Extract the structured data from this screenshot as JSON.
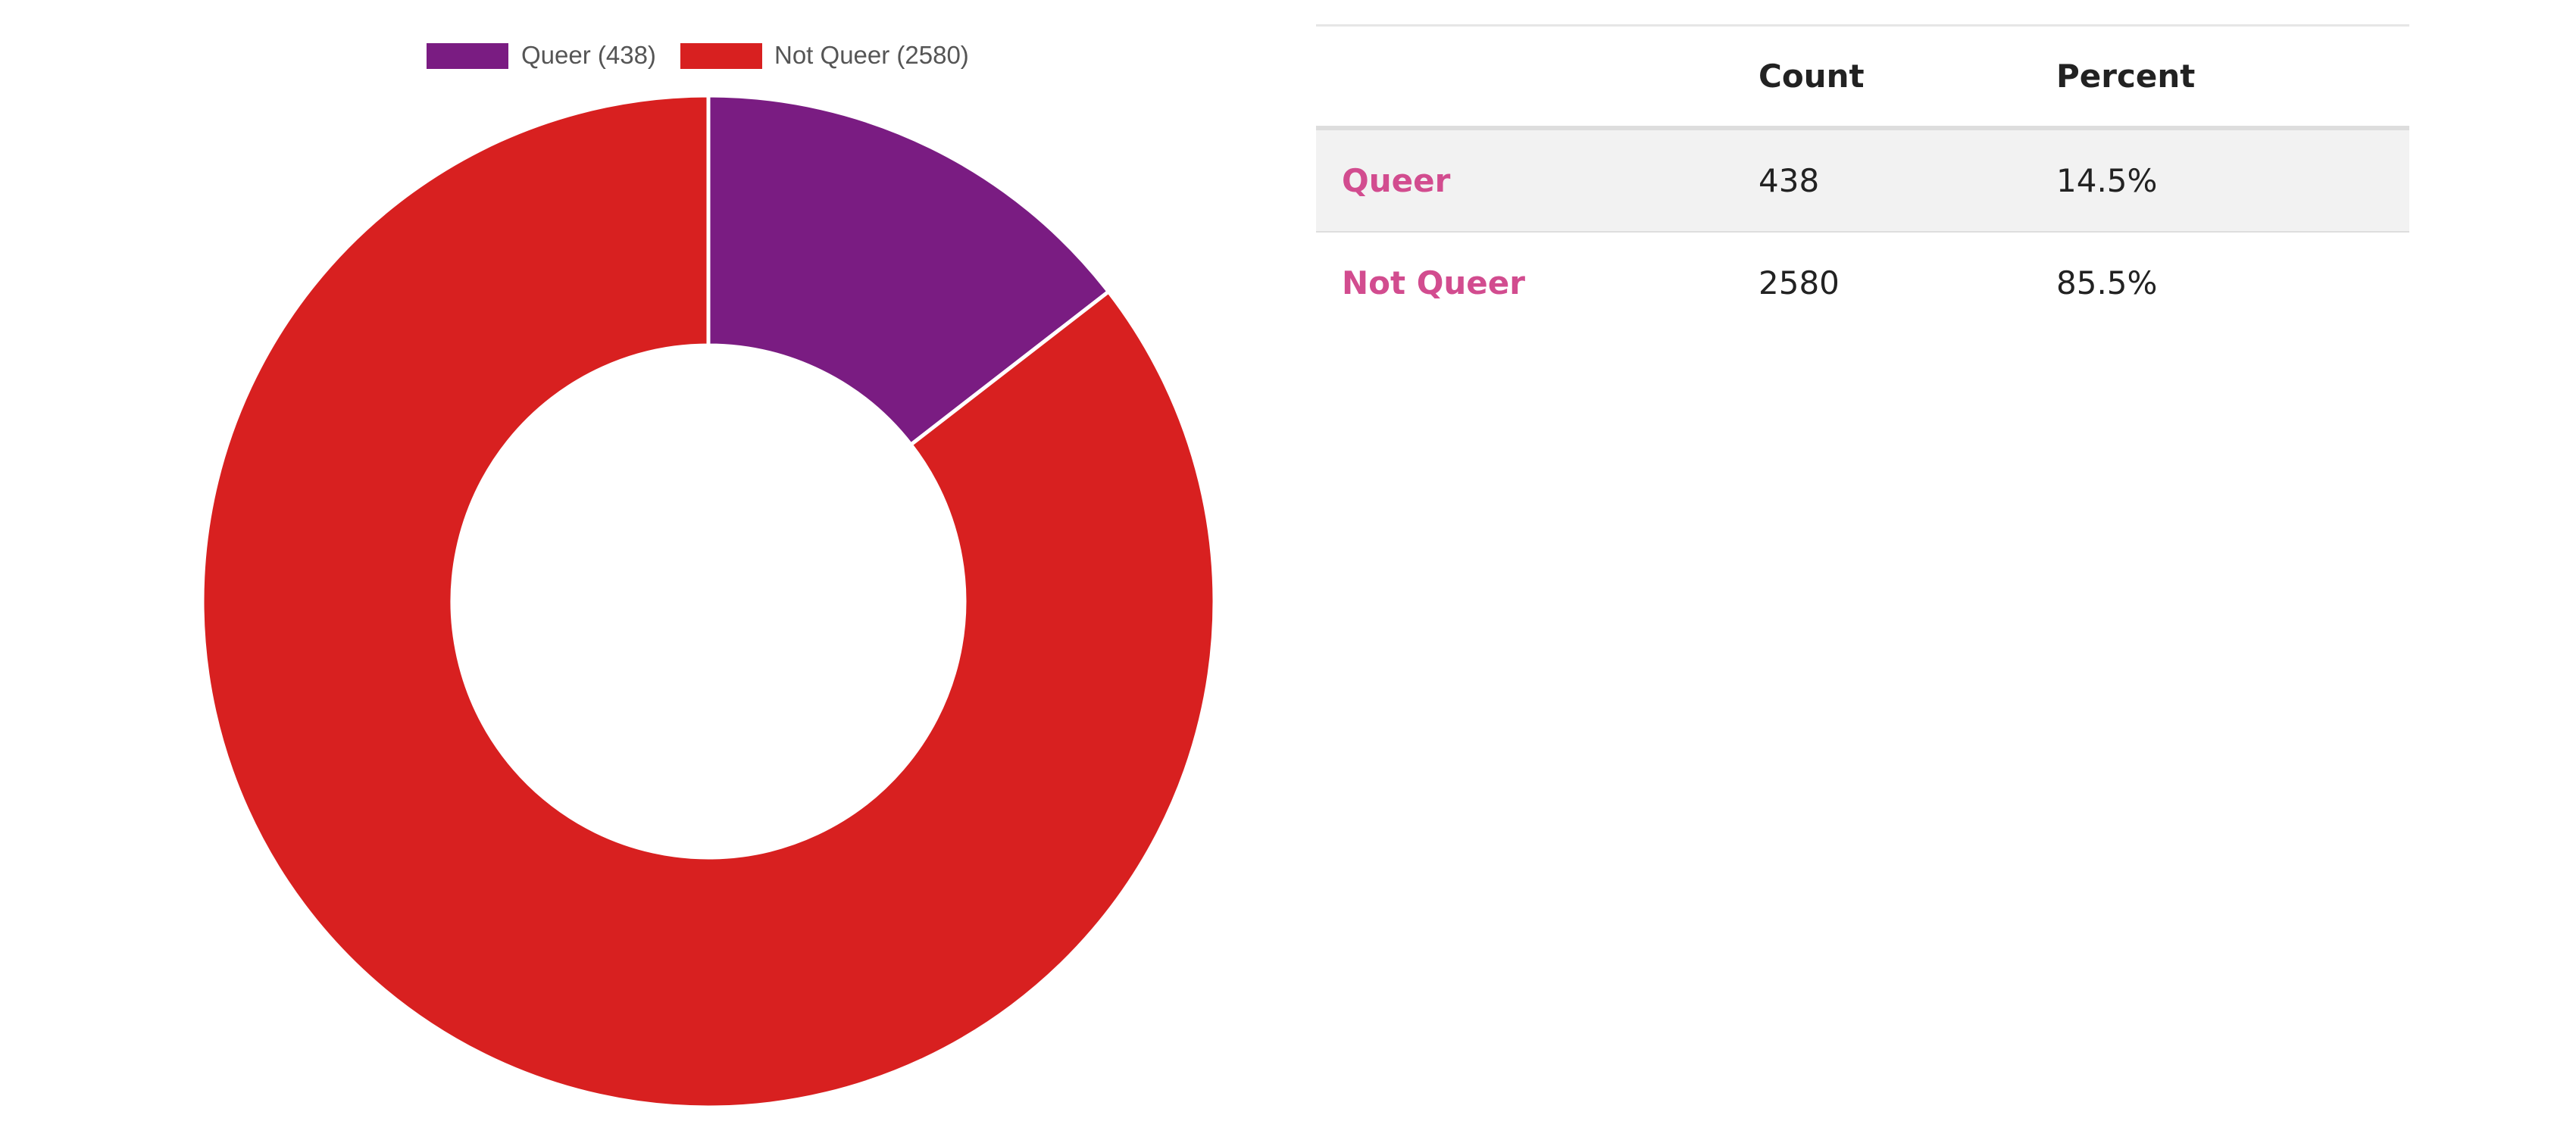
{
  "chart_data": {
    "type": "pie",
    "donut": true,
    "categories": [
      "Queer",
      "Not Queer"
    ],
    "values": [
      438,
      2580
    ],
    "colors": [
      "#7a1c82",
      "#d82020"
    ],
    "legend": {
      "placement": "top-center",
      "entries": [
        "Queer (438)",
        "Not Queer (2580)"
      ]
    }
  },
  "table": {
    "headers": [
      "",
      "Count",
      "Percent"
    ],
    "rows": [
      {
        "label": "Queer",
        "count": "438",
        "percent": "14.5%"
      },
      {
        "label": "Not Queer",
        "count": "2580",
        "percent": "85.5%"
      }
    ]
  }
}
